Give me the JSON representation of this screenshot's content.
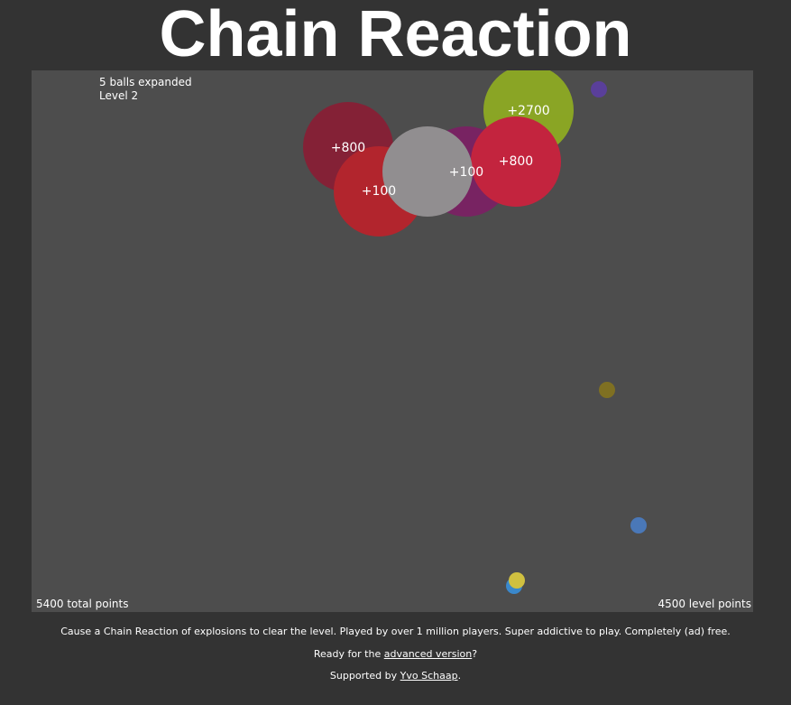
{
  "title": "Chain Reaction",
  "game": {
    "status": [
      "5 balls expanded",
      "Level 2"
    ],
    "explosion_labels": [
      "+800",
      "+100",
      "+100",
      "+800",
      "+2700"
    ],
    "total_points": "5400 total points",
    "level_points": "4500 level points"
  },
  "footer": {
    "description": "Cause a Chain Reaction of explosions to clear the level. Played by over 1 million players. Super addictive to play. Completely (ad) free.",
    "advanced": {
      "before": "Ready for the ",
      "link": "advanced version",
      "after": "?"
    },
    "support": {
      "before": "Supported by ",
      "link": "Yvo Schaap",
      "after": "."
    }
  }
}
